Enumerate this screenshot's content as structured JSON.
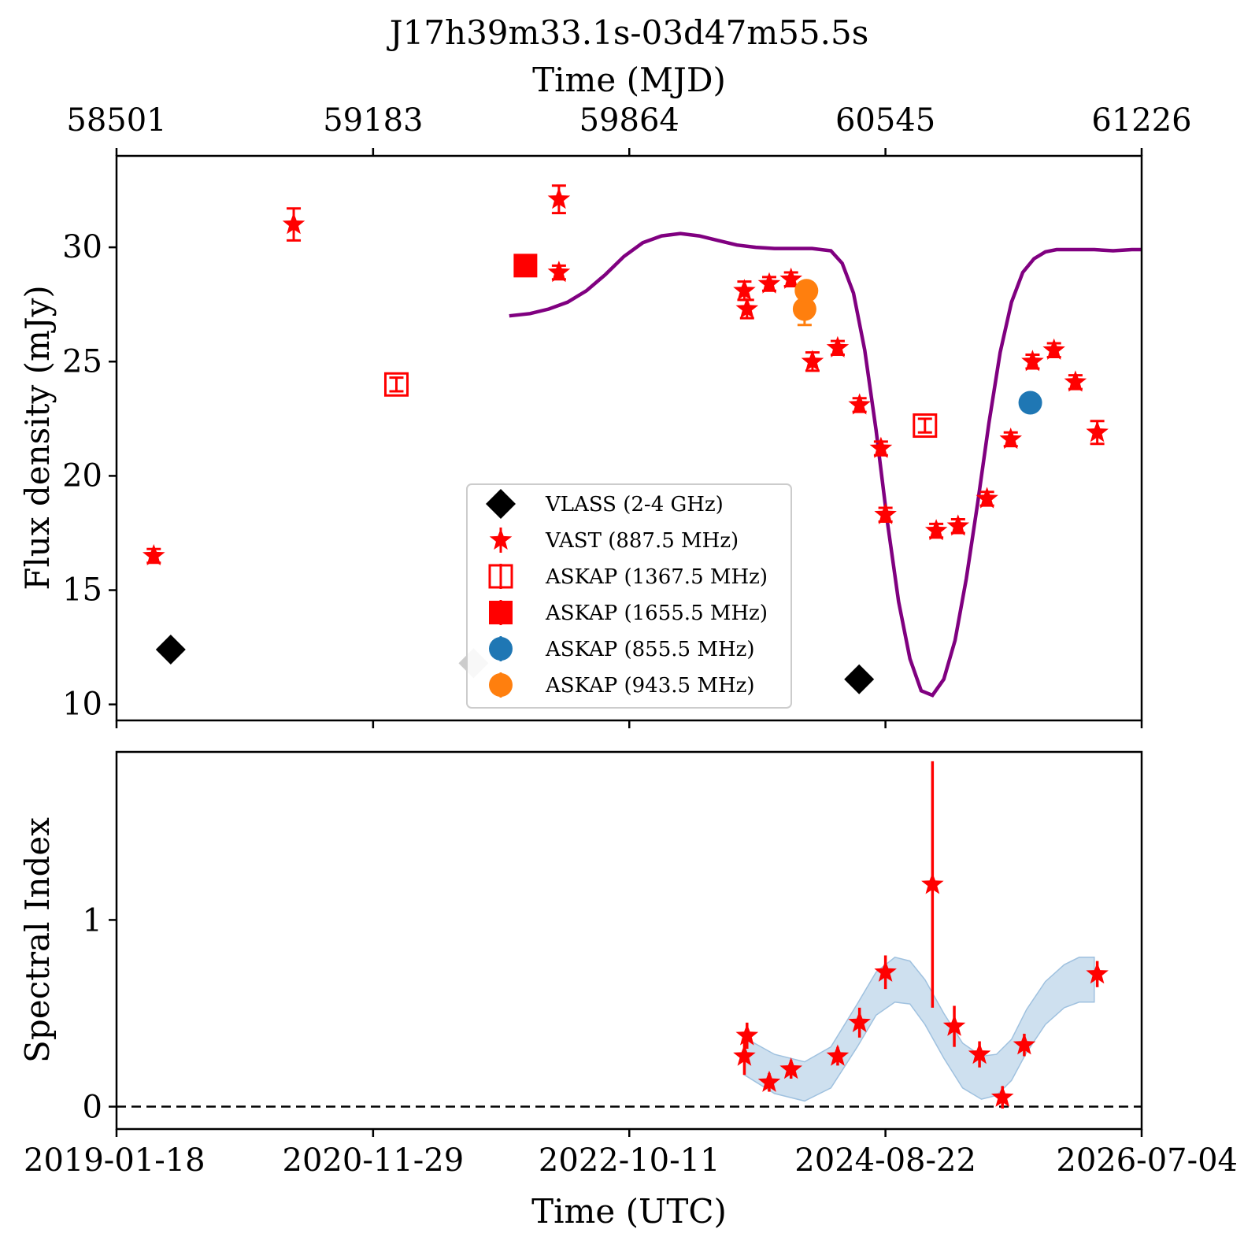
{
  "chart_data": [
    {
      "type": "scatter",
      "panel": "flux",
      "title": "J17h39m33.1s-03d47m55.5s",
      "ylabel": "Flux density (mJy)",
      "top_xlabel": "Time (MJD)",
      "top_ticks": [
        "58501",
        "59183",
        "59864",
        "60545",
        "61226"
      ],
      "top_tick_values": [
        58501,
        59183,
        59864,
        60545,
        61226
      ],
      "xlim_mjd": [
        58501,
        61226
      ],
      "ylim": [
        9.3,
        34
      ],
      "y_ticks": [
        10,
        15,
        20,
        25,
        30
      ],
      "legend_position": "lower-center",
      "legend": [
        {
          "label": "VLASS (2-4 GHz)",
          "marker": "diamond",
          "color": "#000000"
        },
        {
          "label": "VAST (887.5 MHz)",
          "marker": "star",
          "color": "#ff0000"
        },
        {
          "label": "ASKAP (1367.5 MHz)",
          "marker": "open-square",
          "color": "#ff0000"
        },
        {
          "label": "ASKAP (1655.5 MHz)",
          "marker": "square",
          "color": "#ff0000"
        },
        {
          "label": "ASKAP (855.5 MHz)",
          "marker": "circle",
          "color": "#1f77b4"
        },
        {
          "label": "ASKAP (943.5 MHz)",
          "marker": "circle",
          "color": "#ff7f0e"
        }
      ],
      "series": [
        {
          "name": "VLASS (2-4 GHz)",
          "marker": "diamond",
          "color": "#000000",
          "points": [
            {
              "x": 58645,
              "y": 12.4,
              "err": 0.2
            },
            {
              "x": 60475,
              "y": 11.1,
              "err": 0.2
            }
          ]
        },
        {
          "name": "VLASS (2-4 GHz)",
          "marker": "diamond",
          "color": "#cccccc",
          "points": [
            {
              "x": 59450,
              "y": 11.8,
              "err": 0.2
            }
          ]
        },
        {
          "name": "VAST (887.5 MHz)",
          "marker": "star",
          "color": "#ff0000",
          "points": [
            {
              "x": 58600,
              "y": 16.5,
              "err": 0.3
            },
            {
              "x": 58972,
              "y": 31.0,
              "err": 0.7
            },
            {
              "x": 59677,
              "y": 32.1,
              "err": 0.6
            },
            {
              "x": 59677,
              "y": 28.9,
              "err": 0.3
            },
            {
              "x": 60170,
              "y": 28.1,
              "err": 0.4
            },
            {
              "x": 60177,
              "y": 27.3,
              "err": 0.4
            },
            {
              "x": 60236,
              "y": 28.4,
              "err": 0.3
            },
            {
              "x": 60294,
              "y": 28.6,
              "err": 0.3
            },
            {
              "x": 60351,
              "y": 25.0,
              "err": 0.4
            },
            {
              "x": 60418,
              "y": 25.6,
              "err": 0.3
            },
            {
              "x": 60476,
              "y": 23.1,
              "err": 0.3
            },
            {
              "x": 60533,
              "y": 21.2,
              "err": 0.3
            },
            {
              "x": 60545,
              "y": 18.3,
              "err": 0.3
            },
            {
              "x": 60680,
              "y": 17.6,
              "err": 0.3
            },
            {
              "x": 60738,
              "y": 17.8,
              "err": 0.3
            },
            {
              "x": 60815,
              "y": 19.0,
              "err": 0.3
            },
            {
              "x": 60878,
              "y": 21.6,
              "err": 0.3
            },
            {
              "x": 60936,
              "y": 25.0,
              "err": 0.3
            },
            {
              "x": 60993,
              "y": 25.5,
              "err": 0.3
            },
            {
              "x": 61050,
              "y": 24.1,
              "err": 0.3
            },
            {
              "x": 61108,
              "y": 21.9,
              "err": 0.5
            }
          ]
        },
        {
          "name": "ASKAP (1367.5 MHz)",
          "marker": "open-square",
          "color": "#ff0000",
          "points": [
            {
              "x": 59245,
              "y": 24.0,
              "err": 0.3
            },
            {
              "x": 60650,
              "y": 22.2,
              "err": 0.3
            }
          ]
        },
        {
          "name": "ASKAP (1655.5 MHz)",
          "marker": "square",
          "color": "#ff0000",
          "points": [
            {
              "x": 59588,
              "y": 29.2,
              "err": 0.2
            }
          ]
        },
        {
          "name": "ASKAP (855.5 MHz)",
          "marker": "circle",
          "color": "#1f77b4",
          "points": [
            {
              "x": 60930,
              "y": 23.2,
              "err": 0.2
            }
          ]
        },
        {
          "name": "ASKAP (943.5 MHz)",
          "marker": "circle",
          "color": "#ff7f0e",
          "points": [
            {
              "x": 60330,
              "y": 27.3,
              "err": 0.7
            },
            {
              "x": 60335,
              "y": 28.1,
              "err": 0.3
            }
          ]
        }
      ],
      "model_curve": {
        "color": "#800080",
        "x": [
          59545,
          59600,
          59650,
          59700,
          59750,
          59800,
          59850,
          59900,
          59950,
          60000,
          60050,
          60100,
          60150,
          60200,
          60250,
          60300,
          60350,
          60400,
          60430,
          60460,
          60490,
          60520,
          60550,
          60580,
          60610,
          60640,
          60670,
          60700,
          60730,
          60760,
          60790,
          60820,
          60850,
          60880,
          60910,
          60940,
          60970,
          61000,
          61050,
          61100,
          61150,
          61200,
          61226
        ],
        "y": [
          27.0,
          27.1,
          27.3,
          27.6,
          28.1,
          28.8,
          29.6,
          30.2,
          30.5,
          30.6,
          30.5,
          30.3,
          30.1,
          30.0,
          29.95,
          29.95,
          29.95,
          29.85,
          29.3,
          28.0,
          25.5,
          22.0,
          18.0,
          14.5,
          12.0,
          10.6,
          10.4,
          11.1,
          12.8,
          15.5,
          18.8,
          22.3,
          25.4,
          27.6,
          28.9,
          29.5,
          29.8,
          29.9,
          29.9,
          29.9,
          29.85,
          29.9,
          29.9
        ]
      }
    },
    {
      "type": "scatter",
      "panel": "spectral",
      "ylabel": "Spectral Index",
      "xlabel": "Time (UTC)",
      "x_ticks": [
        "2019-01-18",
        "2020-11-29",
        "2022-10-11",
        "2024-08-22",
        "2026-07-04"
      ],
      "x_tick_values_mjd": [
        58501,
        59183,
        59864,
        60545,
        61226
      ],
      "xlim_mjd": [
        58501,
        61226
      ],
      "ylim": [
        -0.12,
        1.9
      ],
      "y_ticks": [
        0,
        1
      ],
      "zero_line": 0,
      "series": [
        {
          "name": "VAST (887.5 MHz)",
          "marker": "star",
          "color": "#ff0000",
          "points": [
            {
              "x": 60170,
              "y": 0.27,
              "err": 0.1
            },
            {
              "x": 60177,
              "y": 0.38,
              "err": 0.07
            },
            {
              "x": 60236,
              "y": 0.13,
              "err": 0.05
            },
            {
              "x": 60294,
              "y": 0.2,
              "err": 0.05
            },
            {
              "x": 60418,
              "y": 0.27,
              "err": 0.05
            },
            {
              "x": 60476,
              "y": 0.45,
              "err": 0.08
            },
            {
              "x": 60545,
              "y": 0.72,
              "err": 0.09
            },
            {
              "x": 60670,
              "y": 1.19,
              "err": 0.66
            },
            {
              "x": 60728,
              "y": 0.43,
              "err": 0.11
            },
            {
              "x": 60795,
              "y": 0.28,
              "err": 0.07
            },
            {
              "x": 60856,
              "y": 0.05,
              "err": 0.06
            },
            {
              "x": 60914,
              "y": 0.33,
              "err": 0.06
            },
            {
              "x": 61108,
              "y": 0.71,
              "err": 0.07
            }
          ]
        }
      ],
      "band": {
        "color": "#b9d3e8",
        "x": [
          60170,
          60250,
          60330,
          60400,
          60470,
          60520,
          60570,
          60610,
          60650,
          60700,
          60750,
          60800,
          60840,
          60880,
          60920,
          60970,
          61020,
          61060,
          61100
        ],
        "upper": [
          0.37,
          0.28,
          0.24,
          0.32,
          0.55,
          0.72,
          0.8,
          0.78,
          0.68,
          0.5,
          0.34,
          0.27,
          0.28,
          0.36,
          0.52,
          0.67,
          0.76,
          0.8,
          0.8
        ],
        "lower": [
          0.17,
          0.07,
          0.03,
          0.1,
          0.32,
          0.49,
          0.56,
          0.55,
          0.44,
          0.26,
          0.1,
          0.04,
          0.06,
          0.14,
          0.29,
          0.44,
          0.53,
          0.56,
          0.56
        ]
      }
    }
  ]
}
